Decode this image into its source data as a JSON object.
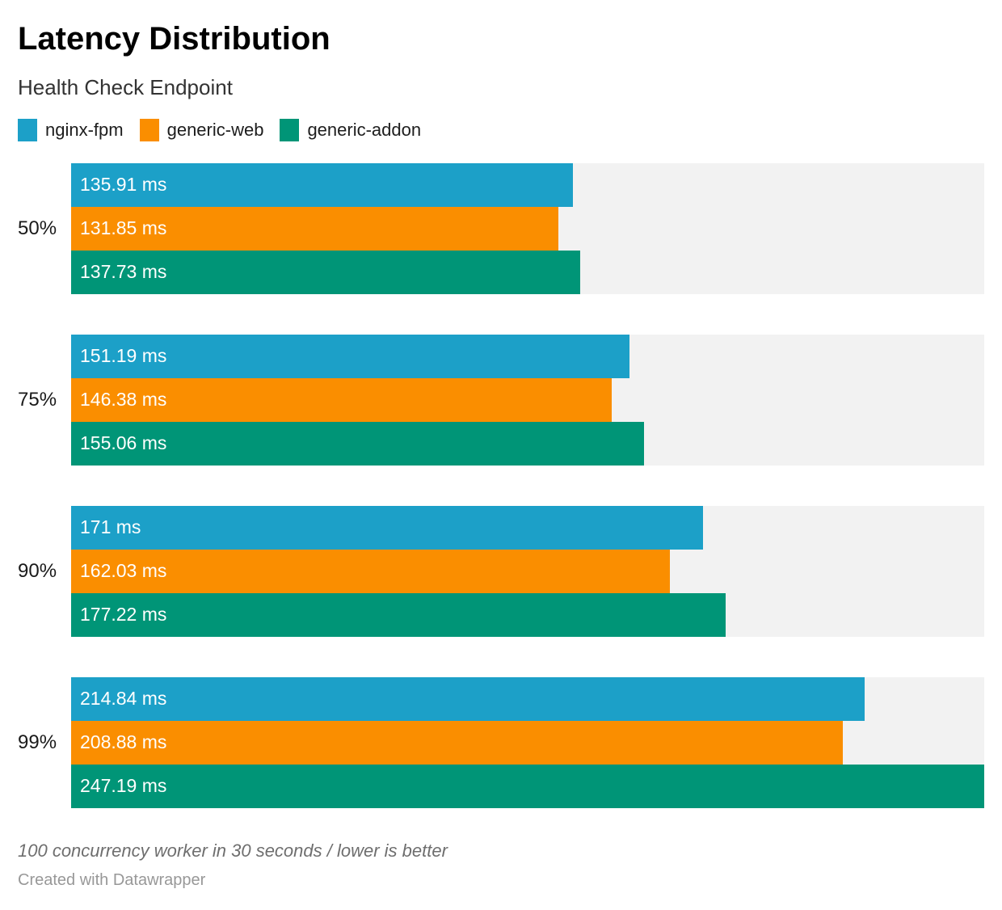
{
  "header": {
    "title": "Latency Distribution",
    "subtitle": "Health Check Endpoint"
  },
  "chart_data": {
    "type": "bar",
    "orientation": "horizontal",
    "unit": "ms",
    "categories": [
      "50%",
      "75%",
      "90%",
      "99%"
    ],
    "series": [
      {
        "name": "nginx-fpm",
        "color": "#1ca0c8",
        "values": [
          135.91,
          151.19,
          171,
          214.84
        ],
        "value_labels": [
          "135.91 ms",
          "151.19 ms",
          "171 ms",
          "214.84 ms"
        ]
      },
      {
        "name": "generic-web",
        "color": "#fa8e00",
        "values": [
          131.85,
          146.38,
          162.03,
          208.88
        ],
        "value_labels": [
          "131.85 ms",
          "146.38 ms",
          "162.03 ms",
          "208.88 ms"
        ]
      },
      {
        "name": "generic-addon",
        "color": "#009577",
        "values": [
          137.73,
          155.06,
          177.22,
          247.19
        ],
        "value_labels": [
          "137.73 ms",
          "155.06 ms",
          "177.22 ms",
          "247.19 ms"
        ]
      }
    ],
    "xmin": 0,
    "xmax": 247.19,
    "track_color": "#f2f2f2",
    "value_label_color": "#ffffff",
    "legend_position": "top",
    "grid": false
  },
  "footer": {
    "note": "100 concurrency worker in 30 seconds / lower is better",
    "attribution": "Created with Datawrapper"
  }
}
